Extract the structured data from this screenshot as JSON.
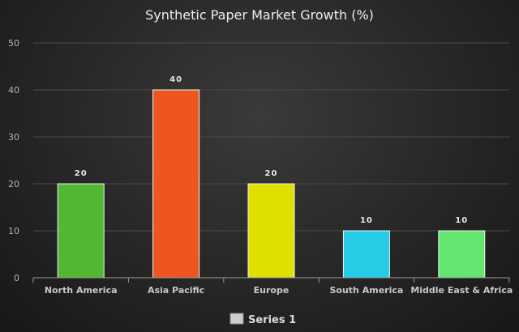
{
  "chart_data": {
    "type": "bar",
    "title": "Synthetic Paper Market Growth (%)",
    "categories": [
      "North America",
      "Asia Pacific",
      "Europe",
      "South America",
      "Middle East & Africa"
    ],
    "series": [
      {
        "name": "Series 1",
        "values": [
          20,
          40,
          20,
          10,
          10
        ],
        "colors": [
          "#52b833",
          "#ee561f",
          "#e0e000",
          "#26cbe6",
          "#63e66f"
        ]
      }
    ],
    "data_labels": [
      "20",
      "40",
      "20",
      "10",
      "10"
    ],
    "y_ticks": [
      "0",
      "10",
      "20",
      "30",
      "40",
      "50"
    ],
    "ylim": [
      0,
      50
    ],
    "grid": true,
    "legend": {
      "position": "bottom",
      "swatch_color": "#cccccc"
    }
  }
}
